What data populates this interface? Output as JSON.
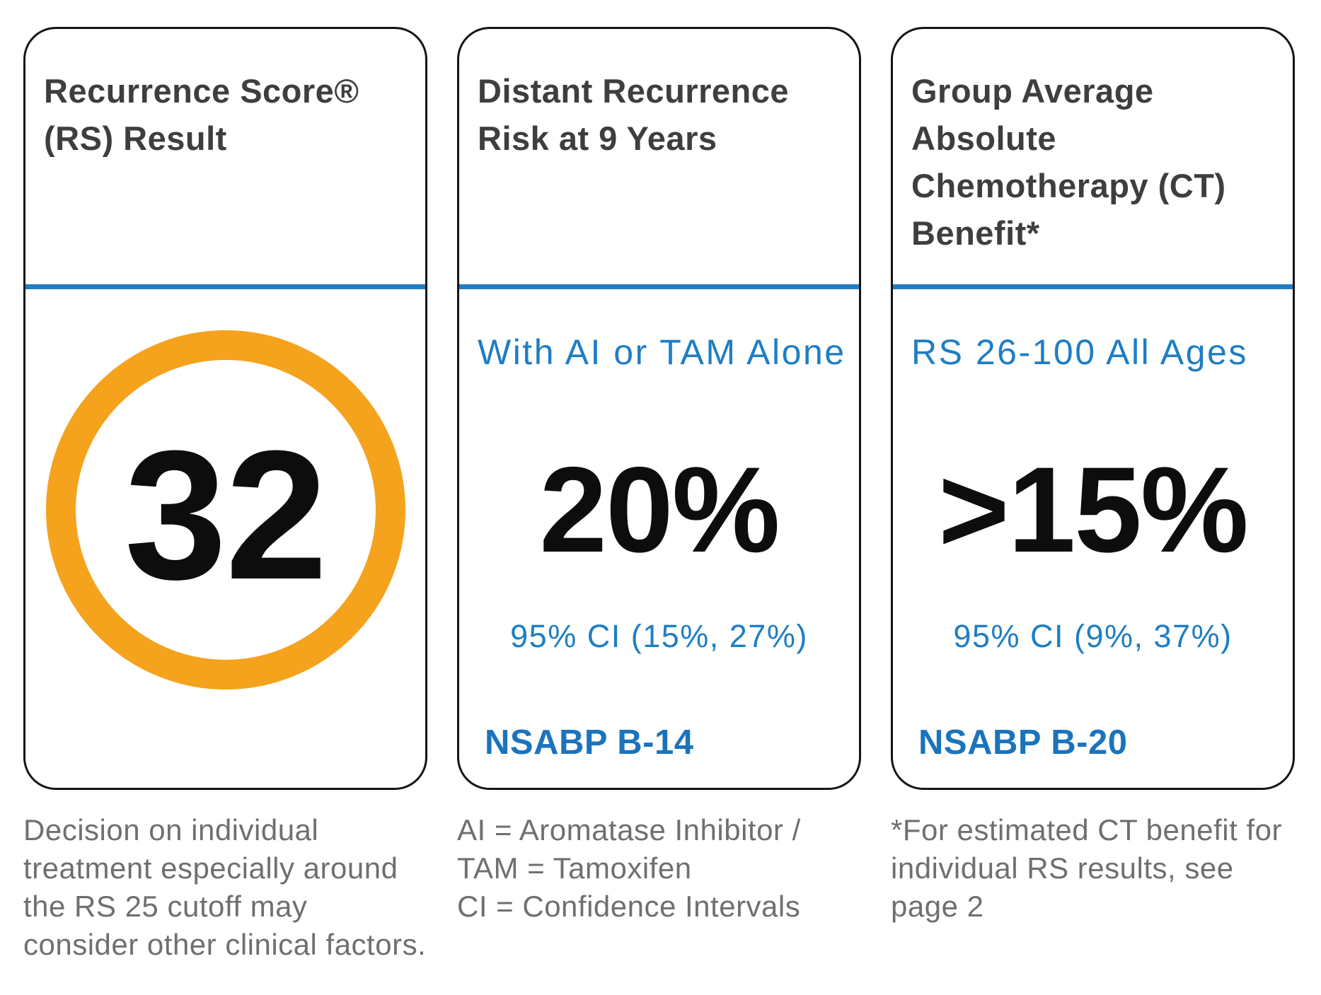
{
  "report": {
    "cards": [
      {
        "title_lines": [
          "Recurrence Score®",
          "(RS) Result"
        ],
        "score": "32"
      },
      {
        "title_lines": [
          "Distant Recurrence",
          "Risk at 9 Years"
        ],
        "subtitle": "With AI or TAM Alone",
        "value": "20%",
        "ci": "95% CI (15%, 27%)",
        "study": "NSABP B-14"
      },
      {
        "title_lines": [
          "Group Average",
          "Absolute",
          "Chemotherapy (CT)",
          "Benefit*"
        ],
        "subtitle": "RS 26-100 All Ages",
        "value": ">15%",
        "ci": "95% CI (9%, 37%)",
        "study": "NSABP B-20"
      }
    ],
    "footnotes": [
      {
        "lines": [
          "Decision on individual",
          "treatment especially around",
          "the RS 25 cutoff may",
          "consider other clinical factors."
        ]
      },
      {
        "lines": [
          "AI = Aromatase Inhibitor /",
          "TAM = Tamoxifen",
          "CI = Confidence Intervals"
        ]
      },
      {
        "lines": [
          "*For estimated CT benefit for",
          "individual RS results, see",
          "page 2"
        ]
      }
    ],
    "colors": {
      "accent_blue": "#1E7EC4",
      "study_blue": "#1B74BB",
      "divider_blue": "#1F7DC1",
      "ring_orange": "#F5A21D",
      "title_charcoal": "#3E3E40",
      "footnote_gray": "#6E6F71",
      "value_black": "#0d0d0d",
      "card_border": "#141414"
    }
  }
}
